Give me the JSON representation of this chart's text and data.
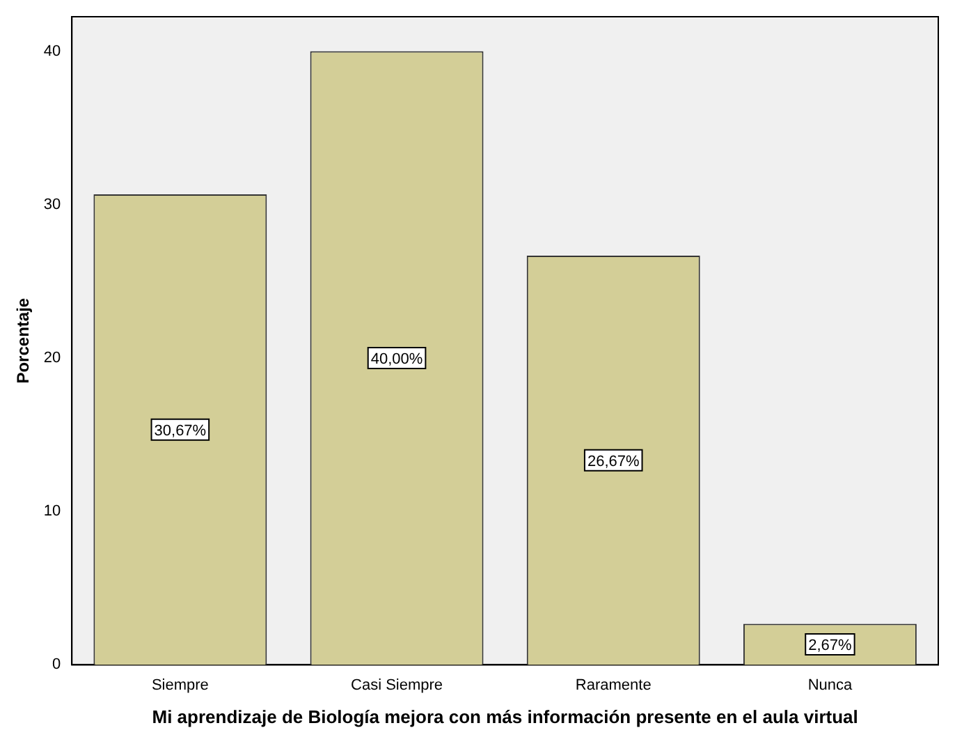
{
  "chart_data": {
    "type": "bar",
    "xlabel": "Mi aprendizaje de Biología mejora con más información presente en el aula virtual",
    "ylabel": "Porcentaje",
    "categories": [
      "Siempre",
      "Casi Siempre",
      "Raramente",
      "Nunca"
    ],
    "values": [
      30.67,
      40.0,
      26.67,
      2.67
    ],
    "value_labels": [
      "30,67%",
      "40,00%",
      "26,67%",
      "2,67%"
    ],
    "color": "#d3ce97",
    "ylim": [
      0,
      42.25
    ],
    "yticks": [
      0,
      10,
      20,
      30,
      40
    ],
    "grid": false,
    "legend": false
  }
}
